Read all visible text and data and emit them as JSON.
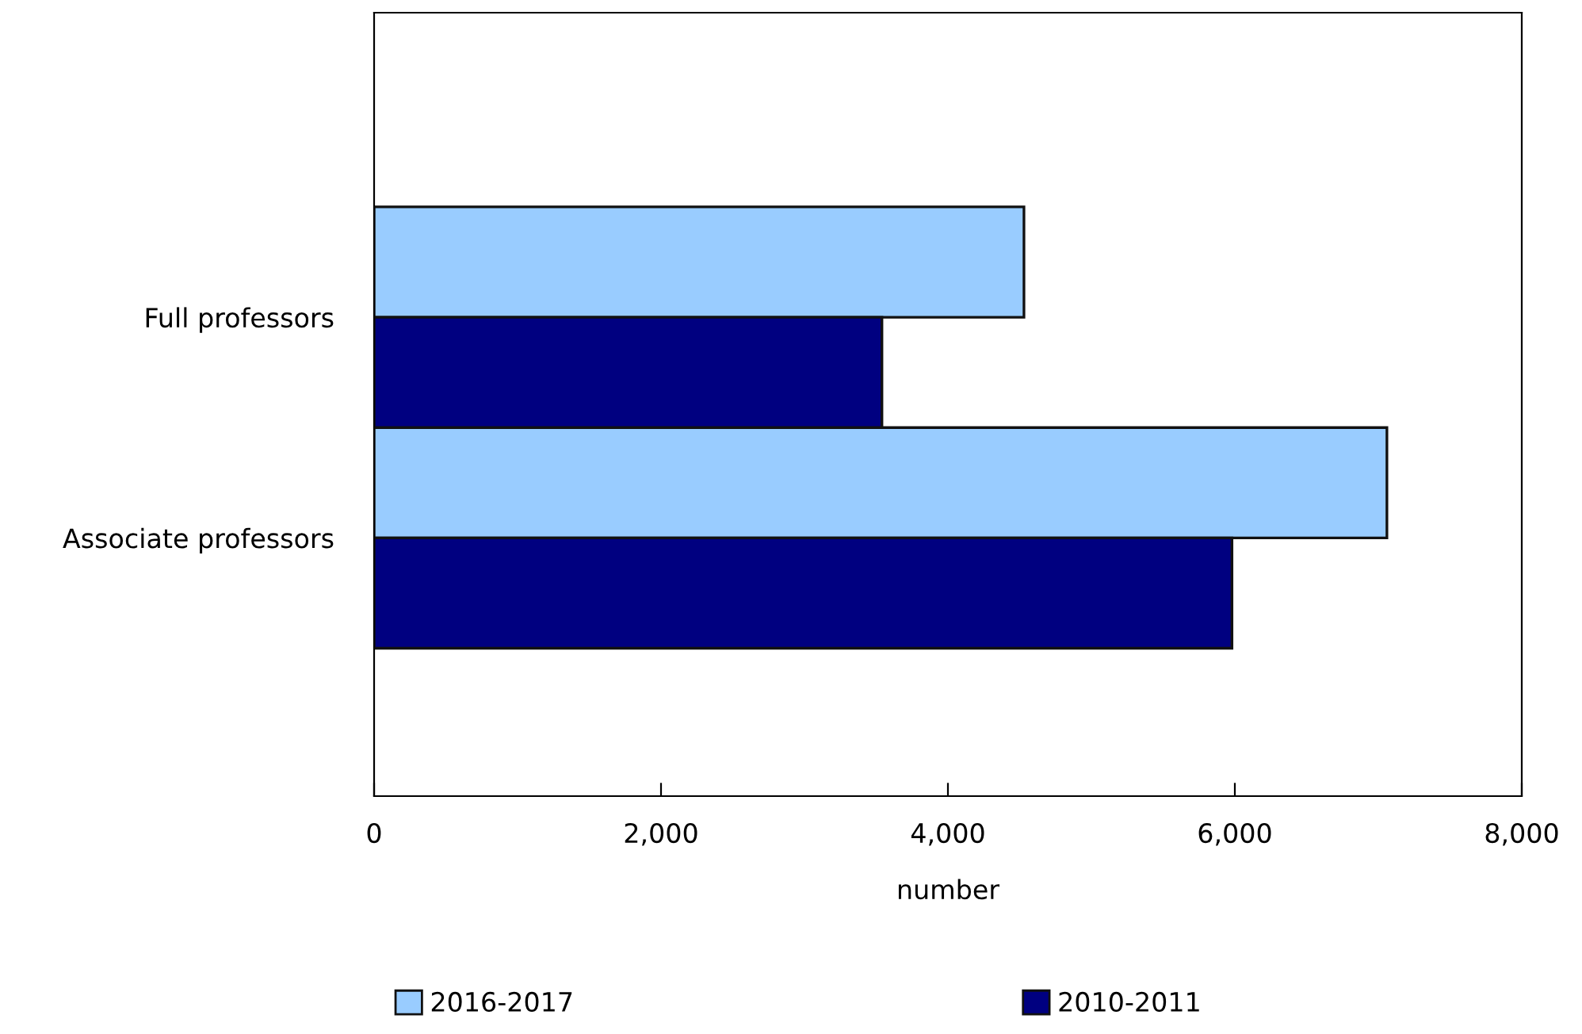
{
  "chart_data": {
    "type": "bar",
    "orientation": "horizontal",
    "categories": [
      "Full professors",
      "Associate professors"
    ],
    "series": [
      {
        "name": "2016-2017",
        "color": "#99ccff",
        "values": [
          4530,
          7060
        ]
      },
      {
        "name": "2010-2011",
        "color": "#000080",
        "values": [
          3540,
          5980
        ]
      }
    ],
    "xlabel": "number",
    "xlim": [
      0,
      8000
    ],
    "xticks": [
      0,
      {
        "value": 2000,
        "label": "2,000"
      },
      {
        "value": 4000,
        "label": "4,000"
      },
      {
        "value": 6000,
        "label": "6,000"
      },
      {
        "value": 8000,
        "label": "8,000"
      }
    ],
    "grid": false,
    "legend": "bottom"
  }
}
